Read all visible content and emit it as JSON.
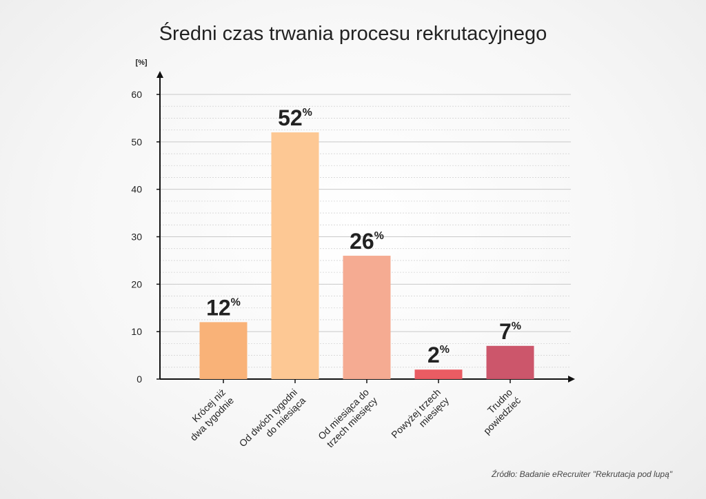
{
  "chart_data": {
    "type": "bar",
    "title": "Średni czas trwania procesu rekrutacyjnego",
    "ylabel": "[%]",
    "xlabel": "",
    "ylim": [
      0,
      60
    ],
    "yticks": [
      0,
      10,
      20,
      30,
      40,
      50,
      60
    ],
    "categories": [
      [
        "Krócej niż",
        "dwa tygodnie"
      ],
      [
        "Od dwóch tygodni",
        "do miesiąca"
      ],
      [
        "Od miesiąca do",
        "trzech miesięcy"
      ],
      [
        "Powyżej trzech",
        "miesięcy"
      ],
      [
        "Trudno",
        "powiedzieć"
      ]
    ],
    "values": [
      12,
      52,
      26,
      2,
      7
    ],
    "value_labels": [
      "12",
      "52",
      "26",
      "2",
      "7"
    ],
    "value_suffix": "%",
    "colors": [
      "#f9b278",
      "#fdc894",
      "#f5ab92",
      "#ea5c63",
      "#cc566b"
    ],
    "grid": true,
    "source": "Źródło: Badanie eRecruiter \"Rekrutacja pod lupą\""
  }
}
